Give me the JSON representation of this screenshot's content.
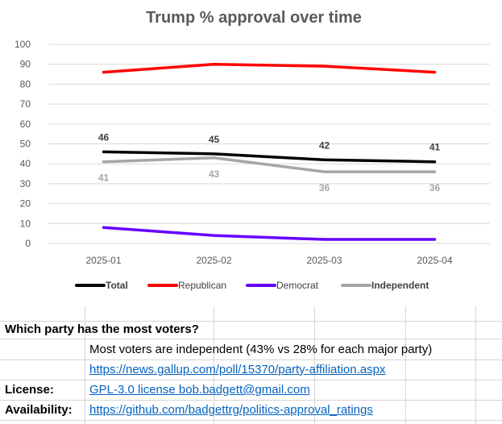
{
  "chart_data": {
    "type": "line",
    "title": "Trump % approval over time",
    "categories": [
      "2025-01",
      "2025-02",
      "2025-03",
      "2025-04"
    ],
    "ylim": [
      0,
      100
    ],
    "yticks": [
      "0",
      "10",
      "20",
      "30",
      "40",
      "50",
      "60",
      "70",
      "80",
      "90",
      "100"
    ],
    "grid": true,
    "legend_position": "bottom",
    "series": [
      {
        "name": "Total",
        "values": [
          46,
          45,
          42,
          41
        ],
        "color": "#000000",
        "labels_shown": true,
        "label_position": "above"
      },
      {
        "name": "Republican",
        "values": [
          86,
          90,
          89,
          86
        ],
        "color": "#ff0000",
        "labels_shown": false
      },
      {
        "name": "Democrat",
        "values": [
          8,
          4,
          2,
          2
        ],
        "color": "#6600ff",
        "labels_shown": false
      },
      {
        "name": "Independent",
        "values": [
          41,
          43,
          36,
          36
        ],
        "color": "#a6a6a6",
        "labels_shown": true,
        "label_position": "below"
      }
    ]
  },
  "rows": {
    "question": "Which party has the most voters?",
    "answer": "Most voters are independent (43% vs 28% for each major party)",
    "source_link": "https://news.gallup.com/poll/15370/party-affiliation.aspx",
    "license_label": "License:",
    "license_value": "GPL-3.0 license bob.badgett@gmail.com",
    "availability_label": "Availability:",
    "availability_value": "https://github.com/badgettrg/politics-approval_ratings"
  }
}
